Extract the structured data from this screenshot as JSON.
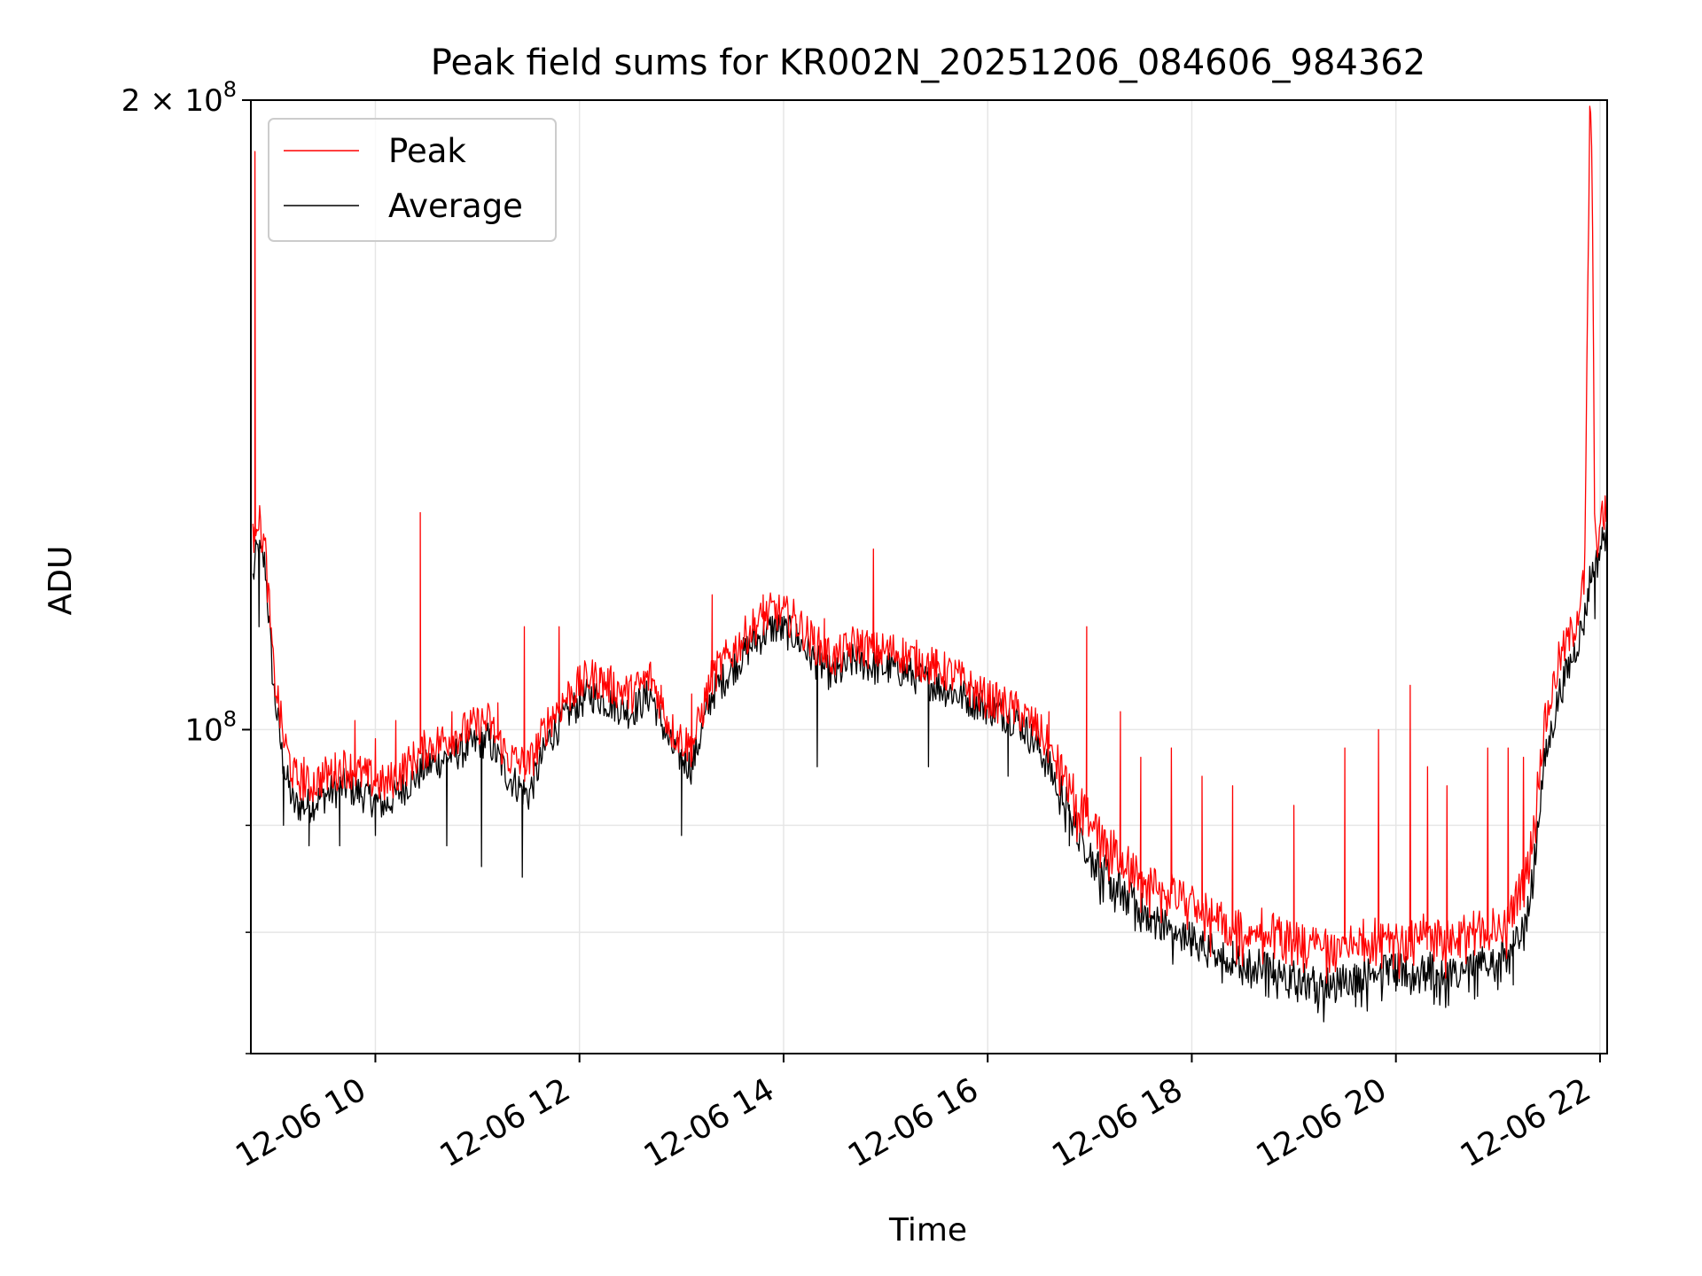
{
  "chart_data": {
    "type": "line",
    "title": "Peak field sums for KR002N_20251206_084606_984362",
    "xlabel": "Time",
    "ylabel": "ADU",
    "yscale": "log",
    "xlim_hours": [
      8.78,
      22.07
    ],
    "ylim": [
      70000000,
      200000000
    ],
    "grid": true,
    "legend_position": "upper-left",
    "x_ticks": [
      {
        "hour": 10,
        "label": "12-06 10"
      },
      {
        "hour": 12,
        "label": "12-06 12"
      },
      {
        "hour": 14,
        "label": "12-06 14"
      },
      {
        "hour": 16,
        "label": "12-06 16"
      },
      {
        "hour": 18,
        "label": "12-06 18"
      },
      {
        "hour": 20,
        "label": "12-06 20"
      },
      {
        "hour": 22,
        "label": "12-06 22"
      }
    ],
    "y_ticks": [
      {
        "value": 200000000,
        "base": "2 × 10",
        "exp": "8"
      },
      {
        "value": 100000000,
        "base": "10",
        "exp": "8"
      }
    ],
    "y_minor_ticks": [
      90000000,
      80000000,
      70000000
    ],
    "series": [
      {
        "name": "Peak",
        "color": "#ff0000",
        "hours": [
          8.8,
          8.84,
          8.92,
          9.0,
          9.1,
          9.2,
          9.35,
          9.5,
          9.7,
          9.9,
          10.1,
          10.3,
          10.5,
          10.7,
          10.9,
          11.1,
          11.3,
          11.5,
          11.7,
          11.9,
          12.1,
          12.3,
          12.5,
          12.7,
          12.9,
          13.1,
          13.3,
          13.5,
          13.7,
          13.9,
          14.1,
          14.3,
          14.5,
          14.7,
          14.9,
          15.1,
          15.3,
          15.5,
          15.7,
          15.9,
          16.1,
          16.3,
          16.5,
          16.7,
          16.9,
          17.1,
          17.3,
          17.5,
          17.7,
          17.9,
          18.1,
          18.3,
          18.5,
          18.7,
          18.9,
          19.1,
          19.3,
          19.5,
          19.7,
          19.9,
          20.1,
          20.3,
          20.5,
          20.7,
          20.9,
          21.1,
          21.3,
          21.45,
          21.6,
          21.75,
          21.85,
          21.9,
          21.92,
          21.95,
          22.0,
          22.07
        ],
        "values": [
          123000000,
          127000000,
          122000000,
          107000000,
          99000000,
          95000000,
          94000000,
          95000000,
          96000000,
          95000000,
          94000000,
          96000000,
          98000000,
          99000000,
          100000000,
          101000000,
          97000000,
          96000000,
          101000000,
          104000000,
          106000000,
          105000000,
          104000000,
          106000000,
          100000000,
          98000000,
          106000000,
          109000000,
          112000000,
          114000000,
          113000000,
          110000000,
          108000000,
          110000000,
          109000000,
          109000000,
          108000000,
          107000000,
          106000000,
          104000000,
          103000000,
          102000000,
          100000000,
          96000000,
          92000000,
          89000000,
          87000000,
          85000000,
          84000000,
          83000000,
          82000000,
          81000000,
          80000000,
          80500000,
          79500000,
          79000000,
          78500000,
          79000000,
          79500000,
          80000000,
          79000000,
          80000000,
          79500000,
          80000000,
          80500000,
          81000000,
          86000000,
          100000000,
          108000000,
          112000000,
          118000000,
          198000000,
          192000000,
          122000000,
          125000000,
          128000000
        ],
        "spikes": [
          [
            8.82,
            189000000
          ],
          [
            9.3,
            97000000
          ],
          [
            9.6,
            95000000
          ],
          [
            9.8,
            101000000
          ],
          [
            10.0,
            99000000
          ],
          [
            10.2,
            101000000
          ],
          [
            10.44,
            127000000
          ],
          [
            10.75,
            102000000
          ],
          [
            10.9,
            101000000
          ],
          [
            11.2,
            103000000
          ],
          [
            11.46,
            112000000
          ],
          [
            11.8,
            112000000
          ],
          [
            12.2,
            107000000
          ],
          [
            12.8,
            105000000
          ],
          [
            13.1,
            104000000
          ],
          [
            13.3,
            116000000
          ],
          [
            13.8,
            116000000
          ],
          [
            14.3,
            112000000
          ],
          [
            14.4,
            113000000
          ],
          [
            14.88,
            122000000
          ],
          [
            15.2,
            109000000
          ],
          [
            15.5,
            106000000
          ],
          [
            16.6,
            102000000
          ],
          [
            16.97,
            112000000
          ],
          [
            17.3,
            102000000
          ],
          [
            17.5,
            97000000
          ],
          [
            17.8,
            98000000
          ],
          [
            18.1,
            95000000
          ],
          [
            18.4,
            94000000
          ],
          [
            19.0,
            92000000
          ],
          [
            19.5,
            98000000
          ],
          [
            19.83,
            100000000
          ],
          [
            20.14,
            105000000
          ],
          [
            20.31,
            96000000
          ],
          [
            20.5,
            94000000
          ],
          [
            20.9,
            98000000
          ],
          [
            21.1,
            98000000
          ],
          [
            21.25,
            97000000
          ]
        ]
      },
      {
        "name": "Average",
        "color": "#000000",
        "hours": [
          8.8,
          8.84,
          8.92,
          9.0,
          9.1,
          9.2,
          9.35,
          9.5,
          9.7,
          9.9,
          10.1,
          10.3,
          10.5,
          10.7,
          10.9,
          11.1,
          11.3,
          11.5,
          11.7,
          11.9,
          12.1,
          12.3,
          12.5,
          12.7,
          12.9,
          13.1,
          13.3,
          13.5,
          13.7,
          13.9,
          14.1,
          14.3,
          14.5,
          14.7,
          14.9,
          15.1,
          15.3,
          15.5,
          15.7,
          15.9,
          16.1,
          16.3,
          16.5,
          16.7,
          16.9,
          17.1,
          17.3,
          17.5,
          17.7,
          17.9,
          18.1,
          18.3,
          18.5,
          18.7,
          18.9,
          19.1,
          19.3,
          19.5,
          19.7,
          19.9,
          20.1,
          20.3,
          20.5,
          20.7,
          20.9,
          21.1,
          21.3,
          21.45,
          21.6,
          21.75,
          21.85,
          21.9,
          21.92,
          21.95,
          22.0,
          22.07
        ],
        "values": [
          118000000,
          122000000,
          120000000,
          105000000,
          96000000,
          92000000,
          92000000,
          93000000,
          94000000,
          93000000,
          92000000,
          94000000,
          96000000,
          97000000,
          98000000,
          99000000,
          95000000,
          93000000,
          99000000,
          102000000,
          104000000,
          103000000,
          102000000,
          104000000,
          98000000,
          96000000,
          104000000,
          107000000,
          110000000,
          112000000,
          111000000,
          108000000,
          106000000,
          108000000,
          107000000,
          107000000,
          106000000,
          105000000,
          104000000,
          103000000,
          102000000,
          101000000,
          98000000,
          94000000,
          89000000,
          86000000,
          84000000,
          82000000,
          81000000,
          80000000,
          79000000,
          78000000,
          77500000,
          77000000,
          76500000,
          76000000,
          75500000,
          76000000,
          76500000,
          77000000,
          76500000,
          77000000,
          76500000,
          77000000,
          77500000,
          78000000,
          82000000,
          96000000,
          104000000,
          109000000,
          113000000,
          118000000,
          119000000,
          119000000,
          122000000,
          125000000
        ],
        "dips": [
          [
            8.86,
            112000000
          ],
          [
            9.1,
            90000000
          ],
          [
            9.35,
            88000000
          ],
          [
            9.65,
            88000000
          ],
          [
            10.0,
            89000000
          ],
          [
            10.7,
            88000000
          ],
          [
            11.04,
            86000000
          ],
          [
            11.44,
            85000000
          ],
          [
            13.0,
            89000000
          ],
          [
            14.33,
            96000000
          ],
          [
            15.42,
            96000000
          ],
          [
            16.2,
            95000000
          ],
          [
            16.8,
            88000000
          ],
          [
            17.2,
            83000000
          ],
          [
            17.6,
            80000000
          ],
          [
            18.0,
            78000000
          ],
          [
            18.4,
            76500000
          ],
          [
            18.8,
            75500000
          ],
          [
            19.2,
            75000000
          ],
          [
            19.6,
            74500000
          ],
          [
            20.0,
            75000000
          ],
          [
            20.4,
            74500000
          ],
          [
            20.8,
            75000000
          ],
          [
            21.15,
            75500000
          ],
          [
            21.95,
            113000000
          ]
        ]
      }
    ]
  }
}
